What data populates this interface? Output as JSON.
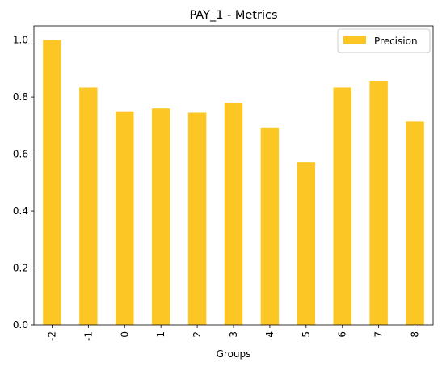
{
  "chart_data": {
    "type": "bar",
    "title": "PAY_1 - Metrics",
    "xlabel": "Groups",
    "ylabel": "",
    "categories": [
      "-2",
      "-1",
      "0",
      "1",
      "2",
      "3",
      "4",
      "5",
      "6",
      "7",
      "8"
    ],
    "series": [
      {
        "name": "Precision",
        "color": "#fcc624",
        "values": [
          1.0,
          0.833,
          0.75,
          0.76,
          0.745,
          0.78,
          0.693,
          0.57,
          0.833,
          0.857,
          0.714
        ]
      }
    ],
    "ylim": [
      0,
      1.05
    ],
    "yticks": [
      "0.0",
      "0.2",
      "0.4",
      "0.6",
      "0.8",
      "1.0"
    ],
    "legend": "top-right",
    "grid": false
  }
}
